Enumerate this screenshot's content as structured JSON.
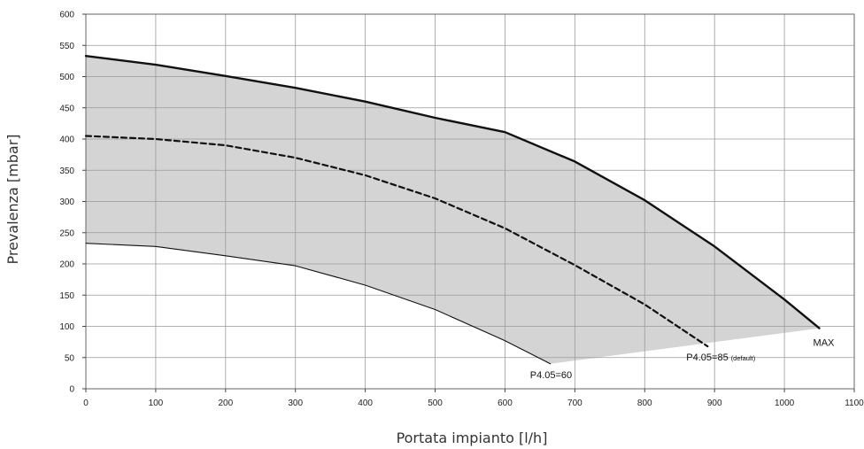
{
  "chart_data": {
    "type": "line",
    "title": "",
    "xlabel": "Portata impianto [l/h]",
    "ylabel": "Prevalenza [mbar]",
    "xlim": [
      0,
      1100
    ],
    "ylim": [
      0,
      600
    ],
    "xticks": [
      0,
      100,
      200,
      300,
      400,
      500,
      600,
      700,
      800,
      900,
      1000,
      1100
    ],
    "yticks": [
      0,
      50,
      100,
      150,
      200,
      250,
      300,
      350,
      400,
      450,
      500,
      550,
      600
    ],
    "grid": true,
    "shaded_region": {
      "color": "#d4d4d4",
      "between": [
        "P4.05=60",
        "MAX"
      ]
    },
    "series": [
      {
        "name": "MAX",
        "style": "solid-thick",
        "color": "#111111",
        "x": [
          0,
          100,
          200,
          300,
          400,
          500,
          600,
          700,
          800,
          900,
          1000,
          1050
        ],
        "y": [
          533,
          519,
          501,
          482,
          460,
          434,
          411,
          364,
          302,
          228,
          143,
          97
        ]
      },
      {
        "name": "P4.05=85",
        "label_suffix": "(default)",
        "style": "dashed",
        "color": "#111111",
        "x": [
          0,
          100,
          200,
          300,
          400,
          500,
          600,
          700,
          800,
          890
        ],
        "y": [
          405,
          400,
          390,
          370,
          342,
          305,
          257,
          198,
          135,
          68
        ]
      },
      {
        "name": "P4.05=60",
        "style": "solid-thin",
        "color": "#111111",
        "x": [
          0,
          100,
          200,
          300,
          400,
          500,
          600,
          665
        ],
        "y": [
          233,
          228,
          213,
          197,
          166,
          127,
          77,
          40
        ]
      }
    ],
    "annotations": [
      {
        "text": "MAX",
        "x": 1050,
        "y": 97
      },
      {
        "text": "P4.05=85",
        "small": "(default)",
        "x": 890,
        "y": 68
      },
      {
        "text": "P4.05=60",
        "x": 665,
        "y": 40
      }
    ]
  }
}
